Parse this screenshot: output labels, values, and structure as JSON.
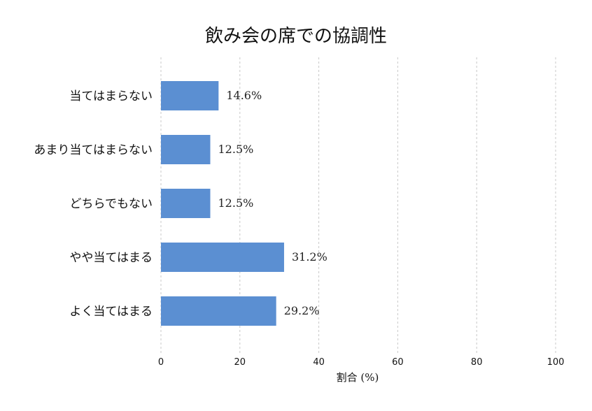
{
  "chart_data": {
    "type": "bar",
    "orientation": "horizontal",
    "title": "飲み会の席での協調性",
    "xlabel": "割合 (%)",
    "ylabel": "",
    "categories": [
      "当てはまらない",
      "あまり当てはまらない",
      "どちらでもない",
      "やや当てはまる",
      "よく当てはまる"
    ],
    "values": [
      14.6,
      12.5,
      12.5,
      31.2,
      29.2
    ],
    "value_labels": [
      "14.6%",
      "12.5%",
      "12.5%",
      "31.2%",
      "29.2%"
    ],
    "xlim": [
      0,
      100
    ],
    "xticks": [
      "0",
      "20",
      "40",
      "60",
      "80",
      "100"
    ],
    "xtick_values": [
      0,
      20,
      40,
      60,
      80,
      100
    ],
    "grid": "vertical dashed",
    "bar_color": "#5b8fd2"
  }
}
